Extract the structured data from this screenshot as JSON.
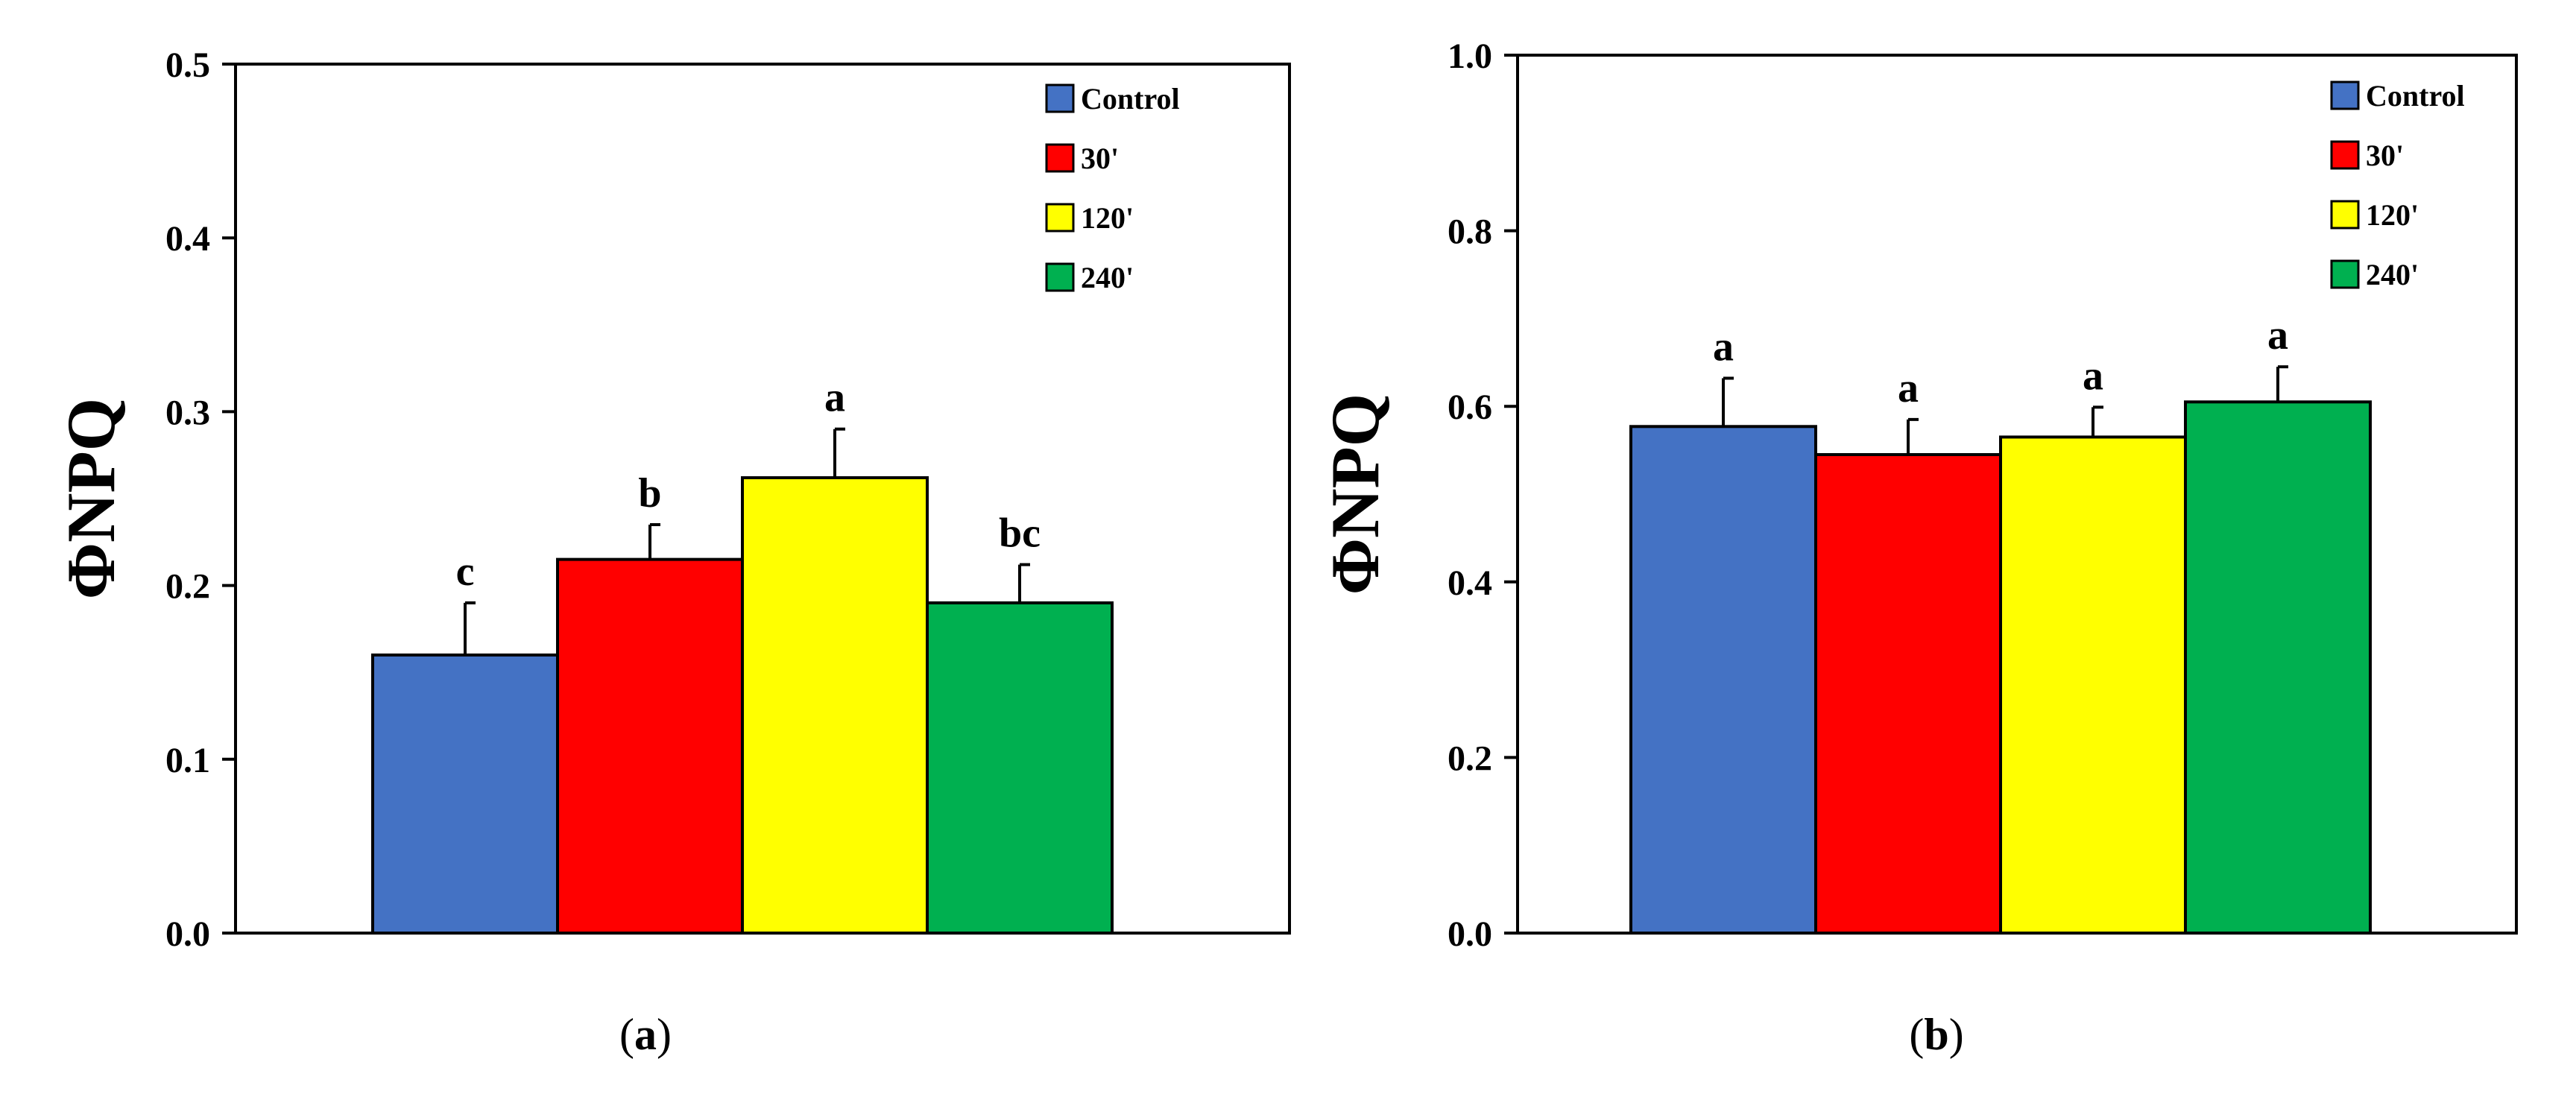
{
  "figure": {
    "panels": [
      {
        "id": "a",
        "caption_open": "(",
        "caption_letter": "a",
        "caption_close": ")"
      },
      {
        "id": "b",
        "caption_open": "(",
        "caption_letter": "b",
        "caption_close": ")"
      }
    ]
  },
  "chart_data": [
    {
      "type": "bar",
      "panel": "a",
      "ylabel": "ΦNPQ",
      "xlabel": "",
      "ylim": [
        0,
        0.5
      ],
      "yticks": [
        0.0,
        0.1,
        0.2,
        0.3,
        0.4,
        0.5
      ],
      "ytick_labels": [
        "0.0",
        "0.1",
        "0.2",
        "0.3",
        "0.4",
        "0.5"
      ],
      "legend_position": "top-right",
      "series": [
        {
          "name": "Control",
          "value": 0.16,
          "error": 0.03,
          "color": "#4472C4",
          "significance": "c"
        },
        {
          "name": "30'",
          "value": 0.215,
          "error": 0.02,
          "color": "#FF0000",
          "significance": "b"
        },
        {
          "name": "120'",
          "value": 0.262,
          "error": 0.028,
          "color": "#FFFF00",
          "significance": "a"
        },
        {
          "name": "240'",
          "value": 0.19,
          "error": 0.022,
          "color": "#00B050",
          "significance": "bc"
        }
      ]
    },
    {
      "type": "bar",
      "panel": "b",
      "ylabel": "ΦNPQ",
      "xlabel": "",
      "ylim": [
        0,
        1.0
      ],
      "yticks": [
        0.0,
        0.2,
        0.4,
        0.6,
        0.8,
        1.0
      ],
      "ytick_labels": [
        "0.0",
        "0.2",
        "0.4",
        "0.6",
        "0.8",
        "1.0"
      ],
      "legend_position": "top-right",
      "series": [
        {
          "name": "Control",
          "value": 0.577,
          "error": 0.055,
          "color": "#4472C4",
          "significance": "a"
        },
        {
          "name": "30'",
          "value": 0.545,
          "error": 0.04,
          "color": "#FF0000",
          "significance": "a"
        },
        {
          "name": "120'",
          "value": 0.565,
          "error": 0.034,
          "color": "#FFFF00",
          "significance": "a"
        },
        {
          "name": "240'",
          "value": 0.605,
          "error": 0.04,
          "color": "#00B050",
          "significance": "a"
        }
      ]
    }
  ]
}
